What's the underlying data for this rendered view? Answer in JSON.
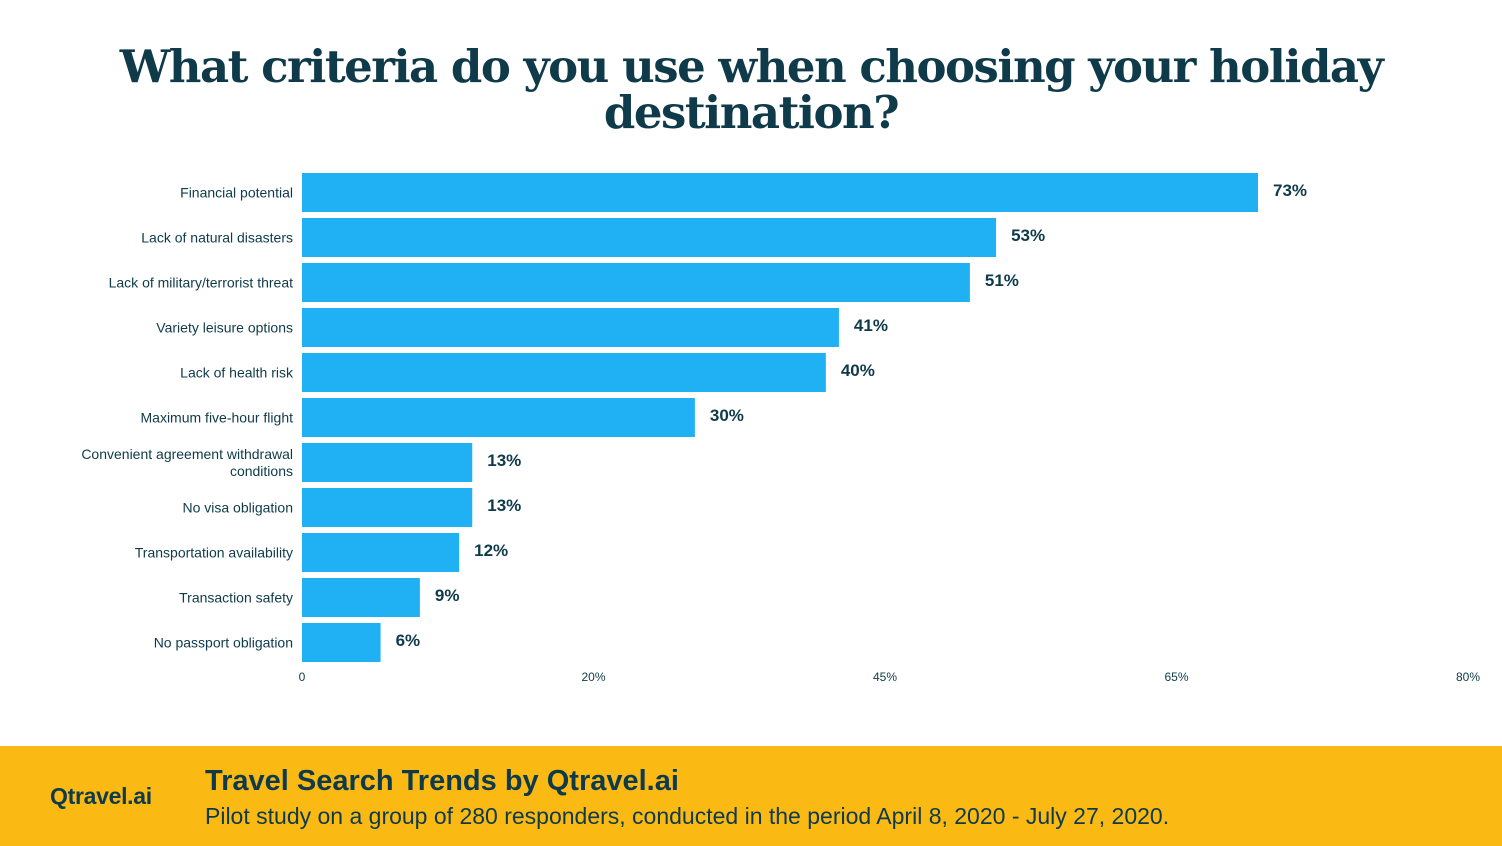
{
  "chart_data": {
    "type": "bar",
    "orientation": "horizontal",
    "title": "What criteria do you use when choosing your holiday\ndestination?",
    "categories": [
      "Financial potential",
      "Lack of natural disasters",
      "Lack of military/terrorist threat",
      "Variety leisure options",
      "Lack of health risk",
      "Maximum five-hour flight",
      "Convenient agreement withdrawal conditions",
      "No visa obligation",
      "Transportation availability",
      "Transaction safety",
      "No passport obligation"
    ],
    "values": [
      73,
      53,
      51,
      41,
      40,
      30,
      13,
      13,
      12,
      9,
      6
    ],
    "value_labels": [
      "73%",
      "53%",
      "51%",
      "41%",
      "40%",
      "30%",
      "13%",
      "13%",
      "12%",
      "9%",
      "6%"
    ],
    "xticks": [
      "0",
      "20%",
      "45%",
      "65%",
      "80%"
    ],
    "bar_color": "#20b1f5",
    "grid": false,
    "legend": "none"
  },
  "footer": {
    "logo": "Qtravel.ai",
    "title": "Travel Search Trends by Qtravel.ai",
    "subtitle": "Pilot study on a group of 280 responders, conducted in the period April 8, 2020 - July 27, 2020.",
    "background_color": "#fbb914"
  }
}
